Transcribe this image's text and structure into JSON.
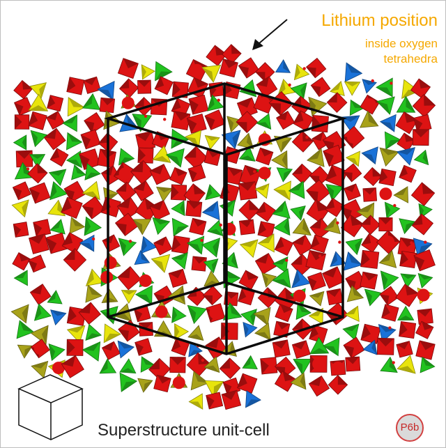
{
  "callout": {
    "title": "Lithium position",
    "subtitle_line1": "inside oxygen",
    "subtitle_line2": "tetrahedra"
  },
  "caption": "Superstructure unit-cell",
  "badge": "P6b",
  "colors": {
    "callout_text": "#f5a800",
    "badge_border": "#d24040",
    "badge_fill": "#dadada",
    "badge_text": "#c62828",
    "octahedra_red": "#dd1313",
    "tetra_green": "#22c21f",
    "tetra_blue": "#1a72d8",
    "tetra_yellow": "#e8e40c",
    "tetra_olive": "#a8a21a",
    "cell_edges": "#0b0b0b"
  },
  "icons": {
    "arrow": "arrow-icon",
    "unit_cell": "unit-cell-icon"
  }
}
